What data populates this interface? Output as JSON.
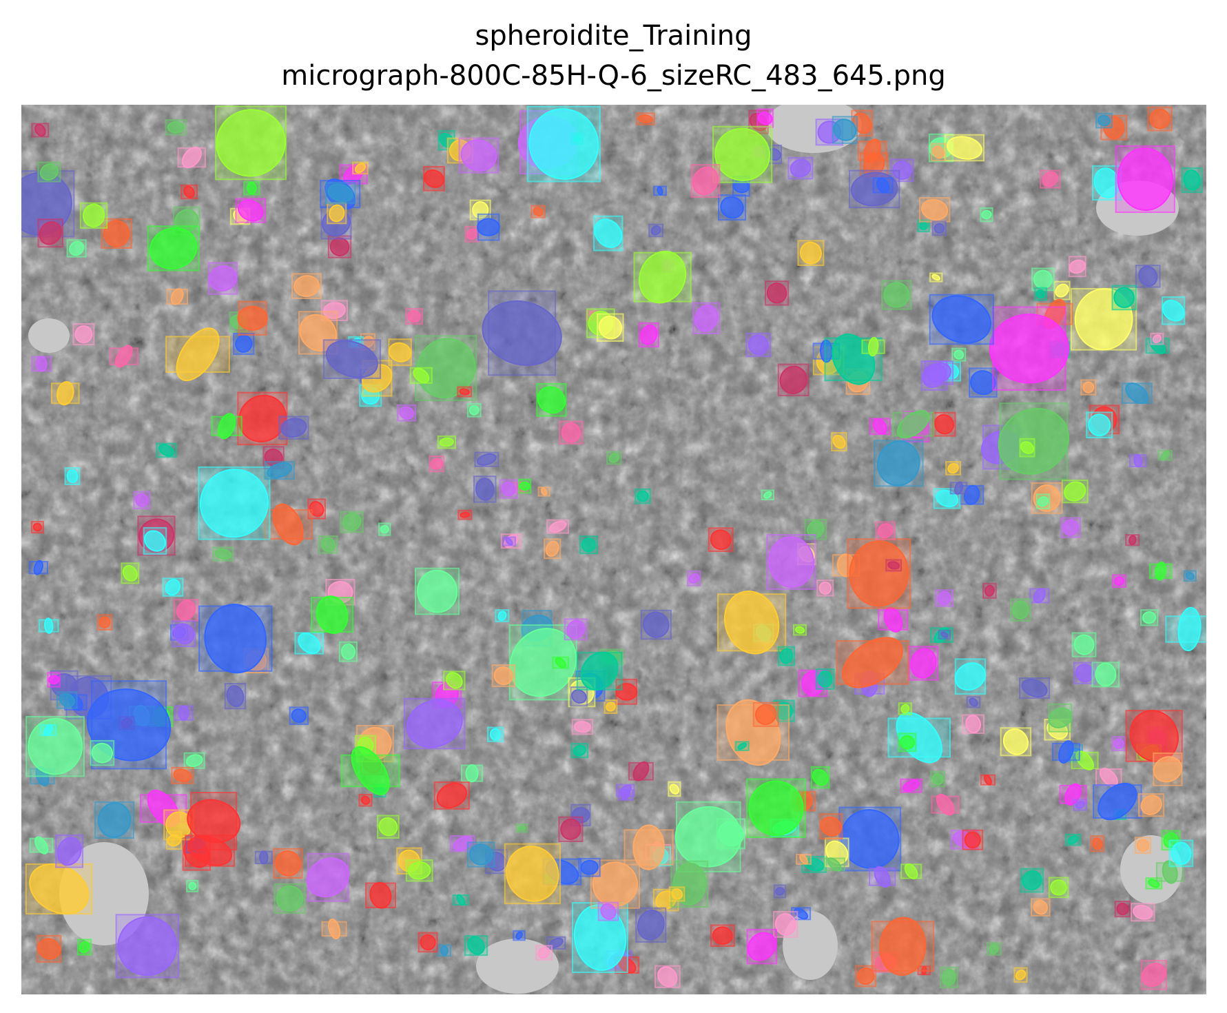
{
  "figure": {
    "title_line_1": "spheroidite_Training",
    "title_line_2": "micrograph-800C-85H-Q-6_sizeRC_483_645.png"
  },
  "image": {
    "description_icon": "segmentation-overlay-icon",
    "background_color": "#7a7a7a"
  }
}
